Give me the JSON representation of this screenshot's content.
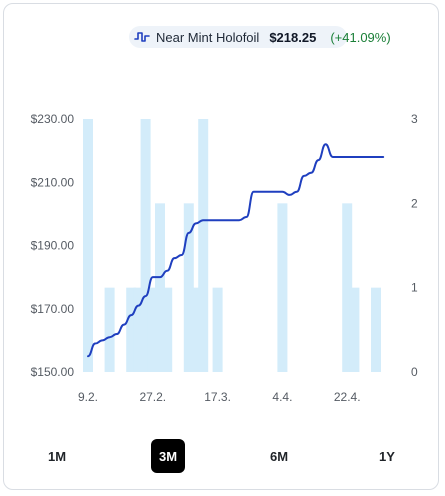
{
  "legend": {
    "series_name": "Near Mint Holofoil",
    "price": "$218.25",
    "change": "(+41.09%)",
    "icon": "price-line-icon"
  },
  "ranges": {
    "items": [
      "1M",
      "3M",
      "6M",
      "1Y"
    ],
    "selected": "3M"
  },
  "colors": {
    "line": "#1f3fbf",
    "bars": "#d3ecfa",
    "change_positive": "#1a7f37",
    "active_button": "#000000"
  },
  "chart_data": {
    "type": "line",
    "title": "",
    "xlabel": "",
    "ylabel": "",
    "x_ticks": [
      "9.2.",
      "27.2.",
      "17.3.",
      "4.4.",
      "22.4."
    ],
    "y_left_ticks": [
      "$230.00",
      "$210.00",
      "$190.00",
      "$170.00",
      "$150.00"
    ],
    "y_right_ticks": [
      "3",
      "2",
      "1",
      "0"
    ],
    "ylim_left": [
      150,
      230
    ],
    "ylim_right": [
      0,
      3
    ],
    "grid": false,
    "legend_position": "top-right",
    "series": [
      {
        "name": "Near Mint Holofoil",
        "axis": "left",
        "x": [
          "9.2.",
          "11.2.",
          "13.2.",
          "15.2.",
          "17.2.",
          "19.2.",
          "21.2.",
          "23.2.",
          "25.2.",
          "27.2.",
          "1.3.",
          "3.3.",
          "5.3.",
          "7.3.",
          "9.3.",
          "11.3.",
          "13.3.",
          "15.3.",
          "17.3.",
          "19.3.",
          "21.3.",
          "23.3.",
          "25.3.",
          "27.3.",
          "29.3.",
          "31.3.",
          "2.4.",
          "4.4.",
          "6.4.",
          "8.4.",
          "10.4.",
          "12.4.",
          "14.4.",
          "16.4.",
          "18.4.",
          "20.4.",
          "22.4.",
          "24.4.",
          "26.4.",
          "28.4.",
          "30.4.",
          "2.5."
        ],
        "values": [
          155,
          159,
          160,
          161,
          162,
          165,
          168,
          171,
          174,
          180,
          180,
          182,
          186,
          187,
          194,
          197,
          198,
          198,
          198,
          198,
          198,
          198,
          199,
          207,
          207,
          207,
          207,
          207,
          206,
          207,
          212,
          213,
          217,
          222,
          218,
          218,
          218,
          218,
          218,
          218,
          218,
          218
        ]
      },
      {
        "name": "",
        "type": "bar",
        "axis": "right",
        "x": [
          "9.2.",
          "15.2.",
          "21.2.",
          "23.2.",
          "25.2.",
          "27.2.",
          "1.3.",
          "3.3.",
          "9.3.",
          "11.3.",
          "13.3.",
          "17.3.",
          "4.4.",
          "22.4.",
          "24.4.",
          "30.4."
        ],
        "values": [
          3,
          1,
          1,
          1,
          3,
          1,
          2,
          1,
          2,
          1,
          3,
          1,
          2,
          2,
          1,
          1
        ]
      }
    ]
  }
}
